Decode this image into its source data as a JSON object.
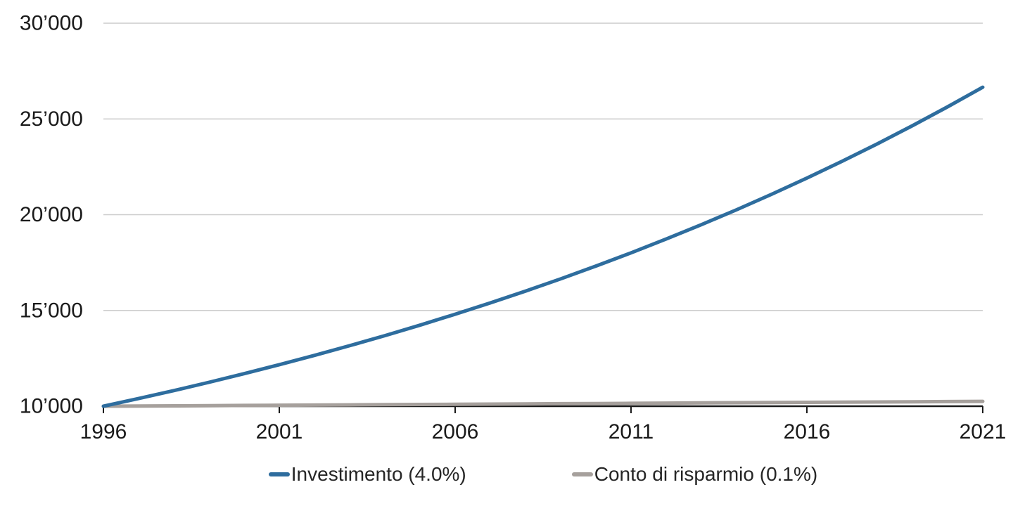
{
  "chart_data": {
    "type": "line",
    "title": "",
    "xlabel": "",
    "ylabel": "",
    "xlim": [
      1996,
      2021
    ],
    "ylim": [
      10000,
      30000
    ],
    "grid": "horizontal",
    "legend_position": "bottom",
    "start_value": 10000,
    "x": [
      1996,
      1997,
      1998,
      1999,
      2000,
      2001,
      2002,
      2003,
      2004,
      2005,
      2006,
      2007,
      2008,
      2009,
      2010,
      2011,
      2012,
      2013,
      2014,
      2015,
      2016,
      2017,
      2018,
      2019,
      2020,
      2021
    ],
    "series": [
      {
        "name": "Investimento (4.0%)",
        "rate": "4.0%",
        "color": "#2e6d9e",
        "values": [
          10000,
          10400,
          10816,
          11249,
          11699,
          12167,
          12653,
          13159,
          13686,
          14233,
          14802,
          15395,
          16010,
          16651,
          17317,
          18009,
          18730,
          19479,
          20258,
          21068,
          21911,
          22788,
          23699,
          24647,
          25633,
          26658
        ]
      },
      {
        "name": "Conto di risparmio (0.1%)",
        "rate": "0.1%",
        "color": "#a6a09c",
        "values": [
          10000,
          10010,
          10020,
          10030,
          10040,
          10050,
          10060,
          10070,
          10080,
          10090,
          10100,
          10110,
          10121,
          10131,
          10141,
          10151,
          10161,
          10171,
          10182,
          10192,
          10202,
          10212,
          10222,
          10233,
          10243,
          10253
        ]
      }
    ],
    "xticks": [
      1996,
      2001,
      2006,
      2011,
      2016,
      2021
    ],
    "xtick_labels": [
      "1996",
      "2001",
      "2006",
      "2011",
      "2016",
      "2021"
    ],
    "yticks": [
      10000,
      15000,
      20000,
      25000,
      30000
    ],
    "ytick_labels": [
      "10’000",
      "15’000",
      "20’000",
      "25’000",
      "30’000"
    ]
  },
  "legend": {
    "items": [
      {
        "label": "Investimento (4.0%)",
        "color": "#2e6d9e"
      },
      {
        "label": "Conto di risparmio (0.1%)",
        "color": "#a6a09c"
      }
    ]
  },
  "colors": {
    "investment_line": "#2e6d9e",
    "savings_line": "#a6a09c",
    "gridline": "#cccccc",
    "axis": "#1a1a1a",
    "tick_text": "#1a1a1a",
    "legend_text": "#262626",
    "background": "#ffffff"
  }
}
